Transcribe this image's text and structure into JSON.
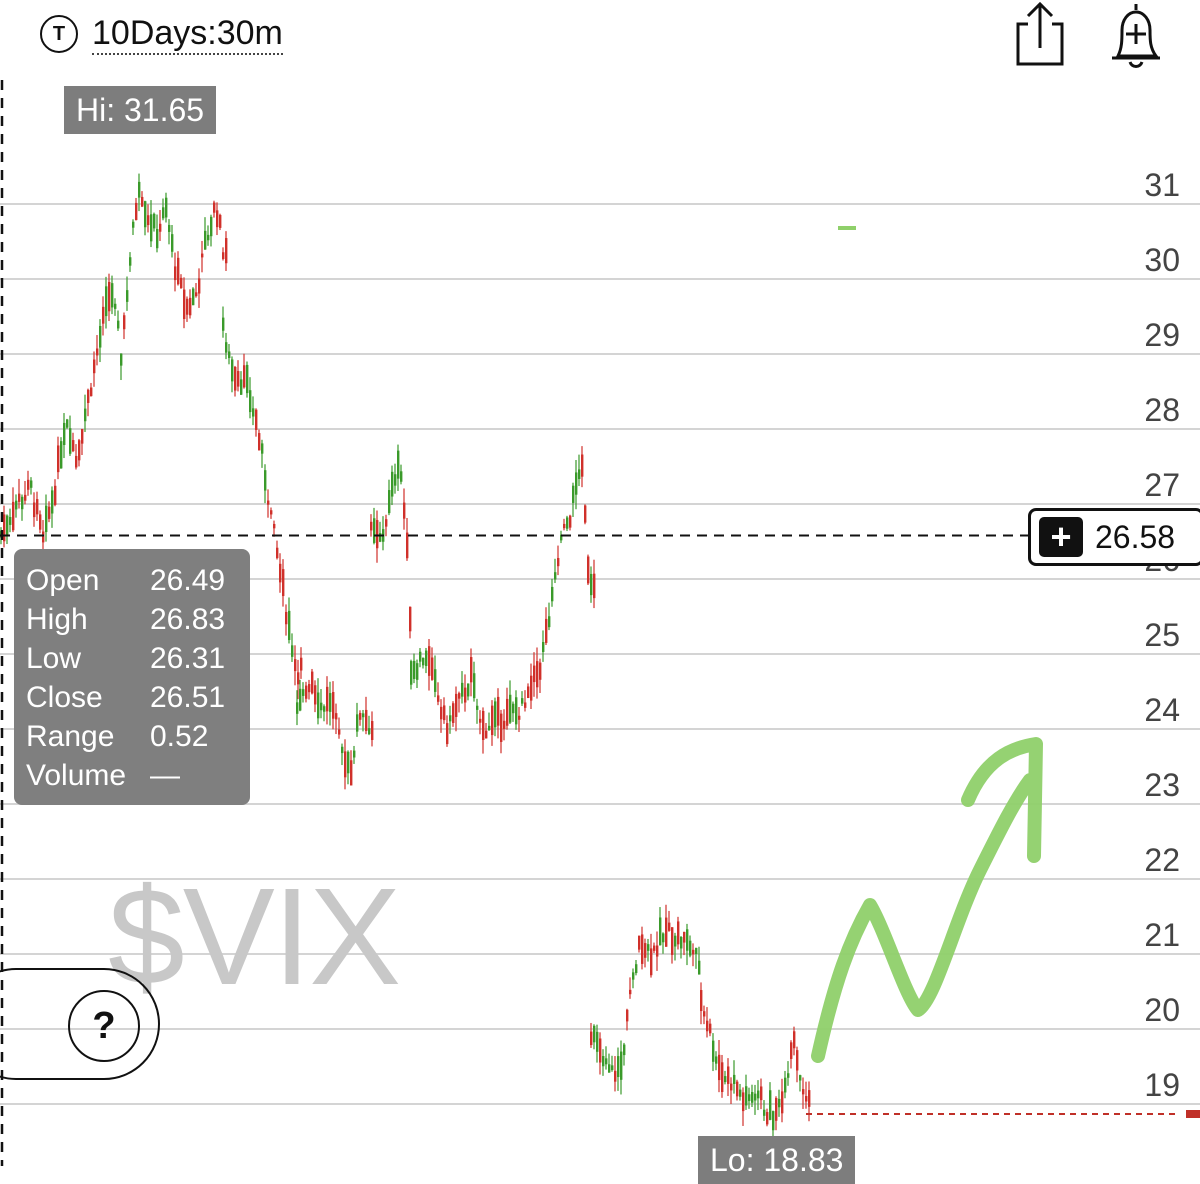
{
  "header": {
    "type_icon_letter": "T",
    "period_label": "10Days:30m"
  },
  "toolbar": {
    "share_icon": "share-icon",
    "alert_icon": "add-alert-bell-icon"
  },
  "hi_label": "Hi: 31.65",
  "lo_label": "Lo: 18.83",
  "ohlc_panel": {
    "rows": [
      {
        "label": "Open",
        "value": "26.49"
      },
      {
        "label": "High",
        "value": "26.83"
      },
      {
        "label": "Low",
        "value": "26.31"
      },
      {
        "label": "Close",
        "value": "26.51"
      },
      {
        "label": "Range",
        "value": "0.52"
      },
      {
        "label": "Volume",
        "value": "—"
      }
    ]
  },
  "watermark": "$VIX",
  "help_button": "?",
  "crosshair_price": "26.58",
  "colors": {
    "up": "#3a9a2a",
    "down": "#d0302a",
    "grid": "#d4d4d4",
    "annotation": "#8fd06a"
  },
  "chart_data": {
    "type": "candlestick",
    "y_ticks": [
      31,
      30,
      29,
      28,
      27,
      26,
      25,
      24,
      23,
      22,
      21,
      20,
      19
    ],
    "ylim": [
      18.7,
      32.0
    ],
    "crosshair_value": 26.58,
    "last_price": 19.0,
    "high": 31.65,
    "low": 18.83,
    "segments": [
      {
        "x_range": [
          0,
          225
        ],
        "path": [
          [
            0,
            26.6
          ],
          [
            15,
            27.0
          ],
          [
            30,
            27.2
          ],
          [
            42,
            26.5
          ],
          [
            55,
            27.3
          ],
          [
            65,
            28.2
          ],
          [
            75,
            27.6
          ],
          [
            90,
            28.6
          ],
          [
            100,
            29.3
          ],
          [
            110,
            29.9
          ],
          [
            120,
            29.0
          ],
          [
            130,
            30.4
          ],
          [
            138,
            31.3
          ],
          [
            145,
            30.9
          ],
          [
            155,
            30.6
          ],
          [
            165,
            30.9
          ],
          [
            175,
            30.1
          ],
          [
            185,
            29.6
          ],
          [
            195,
            29.8
          ],
          [
            205,
            30.5
          ],
          [
            215,
            31.0
          ],
          [
            222,
            30.4
          ]
        ]
      },
      {
        "x_range": [
          222,
          300
        ],
        "path": [
          [
            222,
            29.3
          ],
          [
            232,
            28.8
          ],
          [
            245,
            28.6
          ],
          [
            255,
            28.1
          ],
          [
            265,
            27.3
          ],
          [
            275,
            26.4
          ],
          [
            285,
            25.6
          ],
          [
            295,
            24.8
          ]
        ]
      },
      {
        "x_range": [
          296,
          372
        ],
        "path": [
          [
            296,
            24.2
          ],
          [
            310,
            24.7
          ],
          [
            320,
            24.3
          ],
          [
            330,
            24.4
          ],
          [
            340,
            23.7
          ],
          [
            350,
            23.5
          ],
          [
            360,
            24.3
          ],
          [
            370,
            24.0
          ]
        ]
      },
      {
        "x_range": [
          370,
          410
        ],
        "path": [
          [
            370,
            26.6
          ],
          [
            380,
            26.5
          ],
          [
            390,
            27.1
          ],
          [
            398,
            27.7
          ],
          [
            405,
            26.6
          ],
          [
            410,
            25.3
          ]
        ]
      },
      {
        "x_range": [
          410,
          595
        ],
        "path": [
          [
            410,
            24.8
          ],
          [
            425,
            25.0
          ],
          [
            435,
            24.5
          ],
          [
            445,
            24.0
          ],
          [
            460,
            24.4
          ],
          [
            470,
            24.7
          ],
          [
            480,
            24.0
          ],
          [
            495,
            24.1
          ],
          [
            510,
            24.2
          ],
          [
            525,
            24.3
          ],
          [
            540,
            24.9
          ],
          [
            550,
            25.6
          ],
          [
            560,
            26.5
          ],
          [
            570,
            26.9
          ],
          [
            580,
            27.6
          ],
          [
            588,
            26.0
          ]
        ]
      },
      {
        "x_range": [
          590,
          700
        ],
        "path": [
          [
            590,
            20.0
          ],
          [
            600,
            19.6
          ],
          [
            610,
            19.4
          ],
          [
            620,
            19.5
          ],
          [
            630,
            20.5
          ],
          [
            640,
            21.2
          ],
          [
            650,
            21.0
          ],
          [
            660,
            21.2
          ],
          [
            670,
            21.3
          ],
          [
            680,
            21.2
          ],
          [
            690,
            21.1
          ],
          [
            700,
            20.8
          ]
        ]
      },
      {
        "x_range": [
          700,
          808
        ],
        "path": [
          [
            700,
            20.4
          ],
          [
            710,
            19.9
          ],
          [
            720,
            19.4
          ],
          [
            732,
            19.3
          ],
          [
            745,
            19.0
          ],
          [
            755,
            19.2
          ],
          [
            765,
            18.9
          ],
          [
            775,
            18.85
          ],
          [
            785,
            19.3
          ],
          [
            792,
            20.0
          ],
          [
            800,
            19.3
          ],
          [
            808,
            19.0
          ]
        ]
      }
    ],
    "annotation": "hand-drawn green upward arrow"
  }
}
